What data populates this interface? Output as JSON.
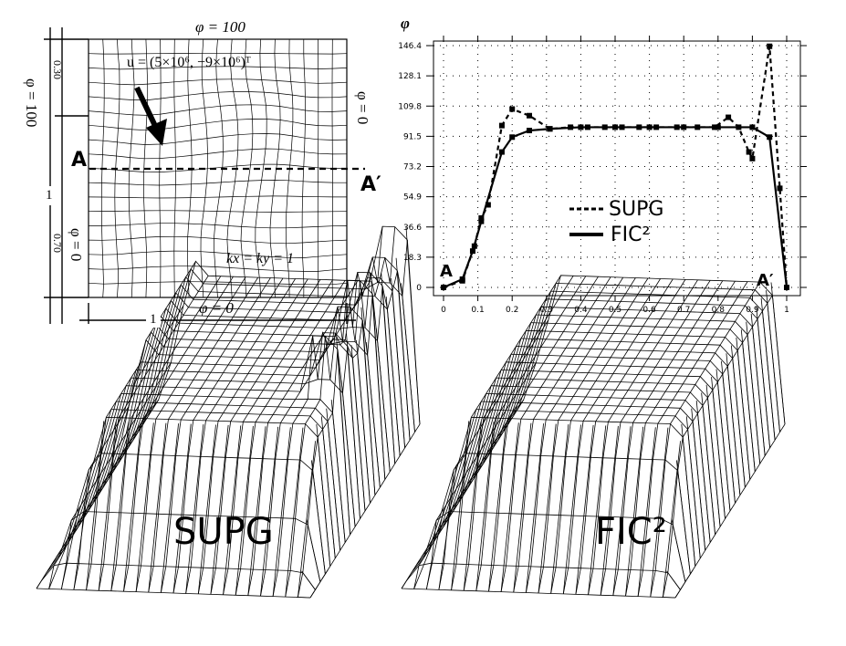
{
  "figure": {
    "problem_panel": {
      "top_bc": "φ = 100",
      "bottom_bc": "φ = 0",
      "left_top_bc": "φ = 100",
      "left_bottom_bc": "φ = 0",
      "right_bc": "φ = 0",
      "velocity_label": "u = (5×10⁶, −9×10⁶)ᵀ",
      "diffusion_label": "kx = ky = 1",
      "section_start": "A",
      "section_end": "A′",
      "dim_width": "1",
      "dim_height": "1",
      "dim_top_segment": "0.30",
      "dim_bottom_segment": "0.70"
    },
    "profile_panel": {
      "y_axis_label": "φ",
      "start_label": "A",
      "end_label": "A′",
      "legend": [
        {
          "label": "SUPG",
          "style": "dashed"
        },
        {
          "label": "FIC²",
          "style": "solid"
        }
      ]
    },
    "surface_panels": [
      {
        "label": "SUPG"
      },
      {
        "label": "FIC²"
      }
    ]
  },
  "chart_data": {
    "type": "line",
    "title": "",
    "xlabel": "",
    "ylabel": "φ",
    "xlim": [
      0,
      1
    ],
    "ylim": [
      0,
      146.4
    ],
    "x_ticks": [
      "0",
      "0.1",
      "0.2",
      "0.3",
      "0.4",
      "0.5",
      "0.6",
      "0.7",
      "0.8",
      "0.9",
      "1"
    ],
    "y_ticks": [
      "0",
      "18.3",
      "36.6",
      "54.9",
      "73.2",
      "91.5",
      "109.8",
      "128.1",
      "146.4"
    ],
    "grid": "dotted",
    "legend_position": "center",
    "series": [
      {
        "name": "SUPG",
        "style": "dashed",
        "x": [
          0,
          0.055,
          0.09,
          0.11,
          0.13,
          0.17,
          0.2,
          0.25,
          0.31,
          0.37,
          0.42,
          0.47,
          0.52,
          0.57,
          0.62,
          0.68,
          0.74,
          0.79,
          0.83,
          0.86,
          0.89,
          0.9,
          0.95,
          0.98,
          1
        ],
        "y": [
          0,
          4,
          25,
          42,
          50,
          98,
          108,
          104,
          96,
          97,
          97,
          97,
          97,
          97,
          97,
          97,
          97,
          97,
          103,
          97,
          82,
          78,
          146,
          60,
          0
        ]
      },
      {
        "name": "FIC²",
        "style": "solid",
        "x": [
          0,
          0.055,
          0.085,
          0.11,
          0.17,
          0.2,
          0.25,
          0.31,
          0.4,
          0.5,
          0.6,
          0.7,
          0.8,
          0.9,
          0.95,
          1
        ],
        "y": [
          0,
          5,
          22,
          40,
          82,
          91,
          95,
          96,
          97,
          97,
          97,
          97,
          97,
          97,
          91,
          0
        ]
      }
    ]
  }
}
